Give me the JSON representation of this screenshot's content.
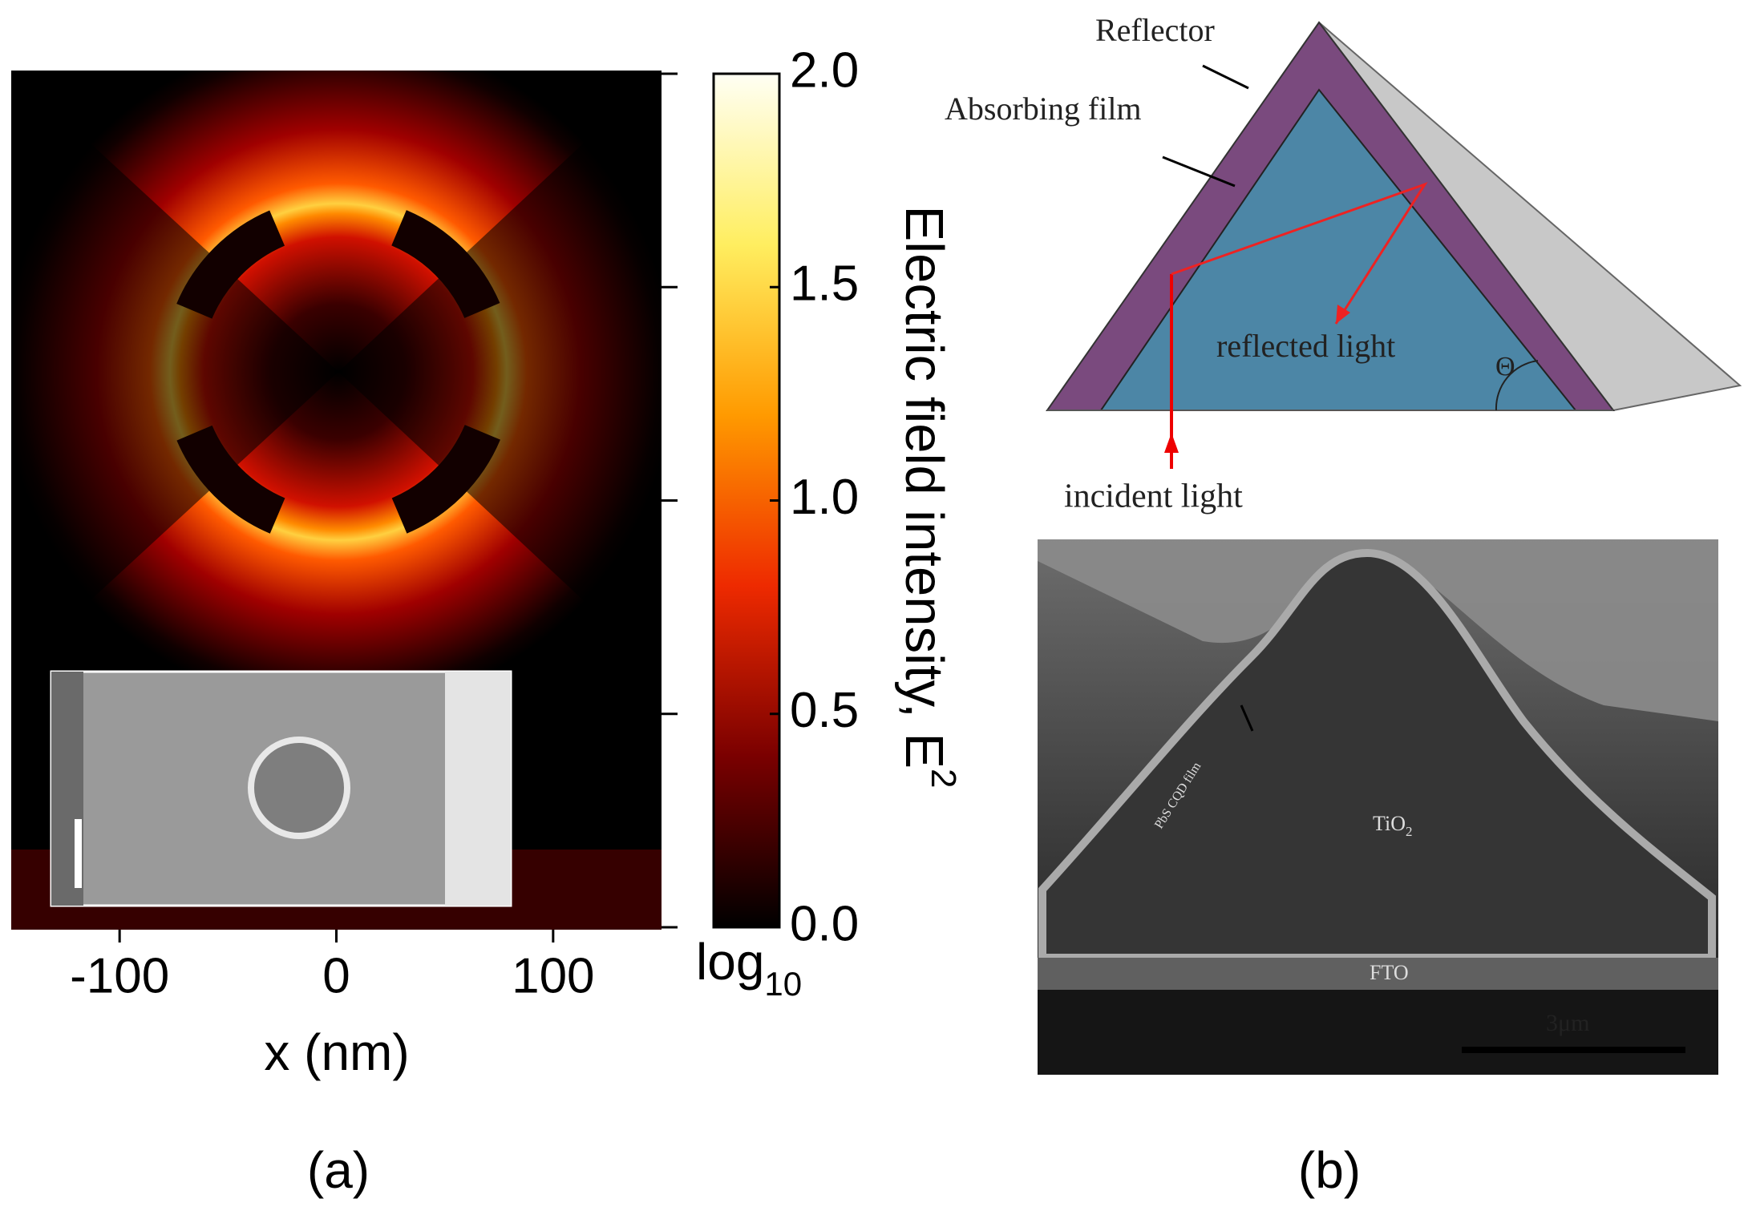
{
  "panel_a": {
    "x_axis": {
      "label": "x (nm)",
      "lim": [
        -150,
        150
      ],
      "ticks": [
        -100,
        0,
        100
      ]
    },
    "colorbar": {
      "lim": [
        0,
        2
      ],
      "ticks": [
        {
          "value": 0,
          "label": "0.0"
        },
        0.5,
        {
          "value": 1,
          "label": "1.0"
        },
        1.5,
        {
          "value": 2,
          "label": "2.0"
        }
      ],
      "label": {
        "text": "Electric field intensity, E",
        "superscript": "2"
      },
      "scale": {
        "text": "log",
        "subscript": "10"
      }
    },
    "caption": "(a)"
  },
  "panel_b": {
    "diagram": {
      "labels": [
        "Reflector",
        "Absorbing film",
        "reflected light",
        "Θ",
        "incident light"
      ]
    },
    "sem": {
      "labels": [
        "PbS CQD film",
        "TiO",
        "FTO",
        "3μm"
      ],
      "tio_subscript": "2"
    },
    "caption": "(b)"
  }
}
